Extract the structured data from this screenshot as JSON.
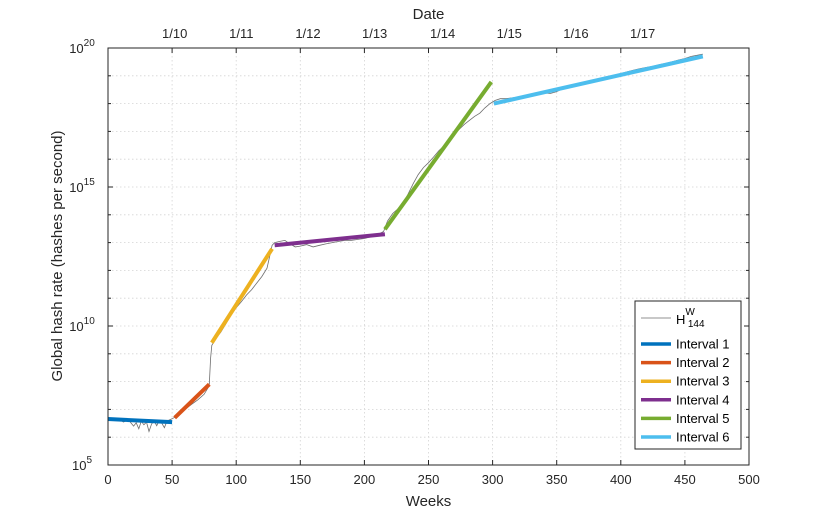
{
  "chart_data": {
    "type": "line",
    "xlabel": "Weeks",
    "ylabel": "Global hash rate (hashes per second)",
    "top_xlabel": "Date",
    "xlim": [
      0,
      500
    ],
    "ylim": [
      100000,
      100000000000000000000
    ],
    "yscale": "log",
    "grid": true,
    "legend_position": "bottom-right",
    "x_ticks": [
      "0",
      "50",
      "100",
      "150",
      "200",
      "250",
      "300",
      "350",
      "400",
      "450",
      "500"
    ],
    "x_tick_values": [
      0,
      50,
      100,
      150,
      200,
      250,
      300,
      350,
      400,
      450,
      500
    ],
    "y_ticks": [
      {
        "base": "10",
        "exp": "5",
        "value": 100000
      },
      {
        "base": "10",
        "exp": "10",
        "value": 10000000000
      },
      {
        "base": "10",
        "exp": "15",
        "value": 1000000000000000
      },
      {
        "base": "10",
        "exp": "20",
        "value": 100000000000000000000
      }
    ],
    "top_ticks": [
      {
        "label": "1/10",
        "week": 52
      },
      {
        "label": "1/11",
        "week": 104
      },
      {
        "label": "1/12",
        "week": 156
      },
      {
        "label": "1/13",
        "week": 208
      },
      {
        "label": "1/14",
        "week": 261
      },
      {
        "label": "1/15",
        "week": 313
      },
      {
        "label": "1/16",
        "week": 365
      },
      {
        "label": "1/17",
        "week": 417
      }
    ],
    "data_series": {
      "name": "H",
      "name_sup": "W",
      "name_sub": "144",
      "color": "#6e6e6e",
      "x": [
        0,
        4,
        8,
        12,
        16,
        20,
        22,
        24,
        26,
        28,
        30,
        32,
        34,
        36,
        38,
        40,
        42,
        44,
        46,
        48,
        50,
        53,
        56,
        60,
        65,
        70,
        75,
        78,
        79,
        80,
        81,
        84,
        88,
        92,
        96,
        100,
        104,
        108,
        112,
        116,
        120,
        124,
        126,
        128,
        130,
        134,
        138,
        142,
        146,
        150,
        155,
        160,
        165,
        170,
        175,
        180,
        185,
        190,
        195,
        200,
        205,
        210,
        215,
        218,
        222,
        226,
        230,
        234,
        238,
        242,
        246,
        250,
        254,
        258,
        262,
        266,
        270,
        274,
        278,
        282,
        286,
        290,
        294,
        298,
        302,
        306,
        310,
        315,
        320,
        325,
        330,
        335,
        340,
        345,
        350,
        355,
        360,
        365,
        370,
        375,
        380,
        385,
        390,
        395,
        400,
        405,
        410,
        415,
        420,
        425,
        430,
        435,
        440,
        445,
        450,
        455,
        460,
        464
      ],
      "y": [
        5000000,
        4500000,
        4800000,
        3500000,
        4200000,
        2500000,
        3300000,
        2000000,
        3800000,
        2800000,
        3500000,
        1600000,
        3000000,
        3800000,
        2600000,
        4000000,
        3200000,
        2200000,
        3800000,
        4200000,
        4600000,
        5500000,
        7000000,
        10000000,
        15000000,
        22000000,
        35000000,
        60000000,
        80000000,
        700000000,
        2000000000,
        3500000000,
        6000000000,
        12000000000,
        25000000000,
        45000000000,
        75000000000,
        130000000000,
        200000000000,
        350000000000,
        600000000000,
        1200000000000,
        3000000000000,
        8000000000000,
        10000000000000,
        11000000000000,
        12000000000000,
        9000000000000,
        7000000000000,
        7500000000000,
        8500000000000,
        7000000000000,
        8000000000000,
        9000000000000,
        10000000000000,
        11000000000000,
        12000000000000,
        12000000000000,
        13000000000000,
        14000000000000,
        16000000000000,
        19000000000000,
        25000000000000,
        60000000000000,
        110000000000000,
        160000000000000,
        250000000000000,
        550000000000000,
        1300000000000000,
        2800000000000000,
        5000000000000000,
        7500000000000000,
        12000000000000000,
        20000000000000000,
        30000000000000000,
        50000000000000000,
        80000000000000000,
        120000000000000000,
        180000000000000000,
        250000000000000000,
        350000000000000000,
        450000000000000000,
        700000000000000000,
        1000000000000000000,
        1300000000000000000,
        1500000000000000000,
        1500000000000000000,
        1600000000000000000,
        1700000000000000000,
        1900000000000000000,
        2200000000000000000,
        2300000000000000000,
        2400000000000000000,
        2300000000000000000,
        2700000000000000000,
        3500000000000000000,
        4200000000000000000,
        5000000000000000000,
        5700000000000000000,
        6500000000000000000,
        7000000000000000000,
        8000000000000000000,
        9000000000000000000,
        10000000000000000000,
        12000000000000000000,
        14000000000000000000,
        16000000000000000000,
        18000000000000000000,
        20000000000000000000,
        22000000000000000000,
        25000000000000000000,
        28000000000000000000,
        32000000000000000000,
        37000000000000000000,
        42000000000000000000,
        50000000000000000000,
        55000000000000000000,
        60000000000000000000
      ]
    },
    "intervals": [
      {
        "name": "Interval 1",
        "color": "#0072bd",
        "x": [
          0,
          50
        ],
        "y": [
          4500000,
          3500000
        ]
      },
      {
        "name": "Interval 2",
        "color": "#d95319",
        "x": [
          52,
          79
        ],
        "y": [
          5000000,
          80000000
        ]
      },
      {
        "name": "Interval 3",
        "color": "#edb120",
        "x": [
          81,
          128
        ],
        "y": [
          2500000000,
          6000000000000
        ]
      },
      {
        "name": "Interval 4",
        "color": "#7e2f8e",
        "x": [
          130,
          216
        ],
        "y": [
          8000000000000,
          20000000000000
        ]
      },
      {
        "name": "Interval 5",
        "color": "#77ac30",
        "x": [
          216,
          299
        ],
        "y": [
          30000000000000,
          6000000000000000000
        ]
      },
      {
        "name": "Interval 6",
        "color": "#4dbeee",
        "x": [
          301,
          464
        ],
        "y": [
          1000000000000000000,
          50000000000000000000
        ]
      }
    ]
  }
}
